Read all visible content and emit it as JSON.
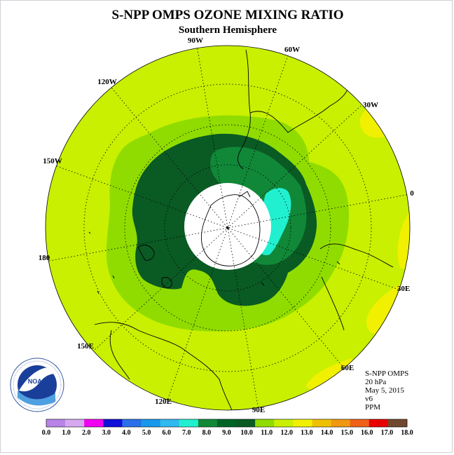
{
  "title": "S-NPP OMPS OZONE MIXING RATIO",
  "subtitle": "Southern Hemisphere",
  "longitude_labels": [
    "90W",
    "60W",
    "120W",
    "30W",
    "150W",
    "0",
    "180",
    "30E",
    "150E",
    "60E",
    "120E",
    "90E"
  ],
  "info": {
    "instrument": "S-NPP OMPS",
    "pressure": "20 hPa",
    "date": "May 5, 2015",
    "version": "v6",
    "unit": "PPM"
  },
  "logo": {
    "text": "NOAA",
    "ring_text": "NATIONAL OCEANIC AND ATMOSPHERIC ADMINISTRATION U.S. DEPARTMENT OF COMMERCE"
  },
  "colorbar": {
    "labels": [
      "0.0",
      "1.0",
      "2.0",
      "3.0",
      "4.0",
      "5.0",
      "6.0",
      "7.0",
      "8.0",
      "9.0",
      "10.0",
      "11.0",
      "12.0",
      "13.0",
      "14.0",
      "15.0",
      "16.0",
      "17.0",
      "18.0"
    ],
    "colors": [
      "#b884e8",
      "#d6a8f0",
      "#f000f0",
      "#1010d8",
      "#2a70e8",
      "#1898ea",
      "#30b8f0",
      "#20f0d0",
      "#108838",
      "#006428",
      "#0a5a24",
      "#90dc00",
      "#c8f000",
      "#f0f000",
      "#f0c000",
      "#f09810",
      "#f06018",
      "#e80000",
      "#704830"
    ]
  },
  "map_colors": {
    "background_level": "#c8f000",
    "ring_10_11": "#90dc00",
    "ring_9_10": "#108838",
    "ring_8_9": "#0a5a24",
    "high_7_8": "#20f0d0",
    "yellow_12_13": "#f0f000",
    "polar_night": "#ffffff"
  }
}
